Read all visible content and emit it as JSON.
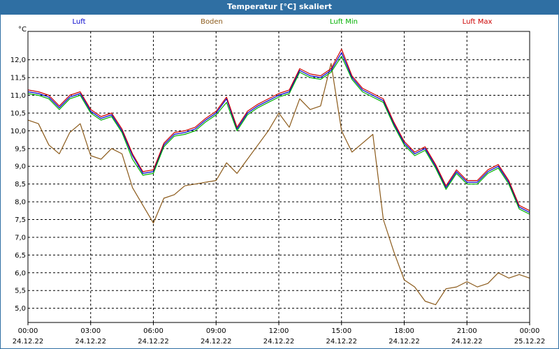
{
  "window": {
    "title": "Temperatur [°C] skaliert",
    "accent": "#2f6fa3"
  },
  "chart_data": {
    "type": "line",
    "title": "Temperatur [°C] skaliert",
    "ylabel": "°C",
    "xlabel": "",
    "ylim": [
      4.6,
      12.8
    ],
    "xlim": [
      0,
      24
    ],
    "grid": true,
    "legend_position": "top",
    "yticks": [
      5.0,
      5.5,
      6.0,
      6.5,
      7.0,
      7.5,
      8.0,
      8.5,
      9.0,
      9.5,
      10.0,
      10.5,
      11.0,
      11.5,
      12.0
    ],
    "ytick_labels": [
      "5,0",
      "5,5",
      "6,0",
      "6,5",
      "7,0",
      "7,5",
      "8,0",
      "8,5",
      "9,0",
      "9,5",
      "10,0",
      "10,5",
      "11,0",
      "11,5",
      "12,0"
    ],
    "xticks": [
      0,
      3,
      6,
      9,
      12,
      15,
      18,
      21,
      24
    ],
    "xtick_labels": [
      {
        "time": "00:00",
        "date": "24.12.22"
      },
      {
        "time": "03:00",
        "date": "24.12.22"
      },
      {
        "time": "06:00",
        "date": "24.12.22"
      },
      {
        "time": "09:00",
        "date": "24.12.22"
      },
      {
        "time": "12:00",
        "date": "24.12.22"
      },
      {
        "time": "15:00",
        "date": "24.12.22"
      },
      {
        "time": "18:00",
        "date": "24.12.22"
      },
      {
        "time": "21:00",
        "date": "24.12.22"
      },
      {
        "time": "00:00",
        "date": "25.12.22"
      }
    ],
    "x": [
      0,
      0.5,
      1,
      1.5,
      2,
      2.5,
      3,
      3.5,
      4,
      4.5,
      5,
      5.5,
      6,
      6.5,
      7,
      7.5,
      8,
      8.5,
      9,
      9.5,
      10,
      10.5,
      11,
      11.5,
      12,
      12.5,
      13,
      13.5,
      14,
      14.5,
      15,
      15.5,
      16,
      16.5,
      17,
      17.5,
      18,
      18.5,
      19,
      19.5,
      20,
      20.5,
      21,
      21.5,
      22,
      22.5,
      23,
      23.5,
      24
    ],
    "series": [
      {
        "name": "Luft",
        "color": "#0000cc",
        "values": [
          11.1,
          11.05,
          10.95,
          10.65,
          10.95,
          11.05,
          10.55,
          10.35,
          10.45,
          10.0,
          9.3,
          8.8,
          8.85,
          9.6,
          9.9,
          9.95,
          10.05,
          10.3,
          10.5,
          10.9,
          10.05,
          10.5,
          10.7,
          10.85,
          11.0,
          11.1,
          11.7,
          11.55,
          11.5,
          11.7,
          12.2,
          11.5,
          11.15,
          11.0,
          10.85,
          10.2,
          9.65,
          9.35,
          9.5,
          9.0,
          8.4,
          8.85,
          8.55,
          8.55,
          8.85,
          9.0,
          8.55,
          7.85,
          7.7
        ]
      },
      {
        "name": "Boden",
        "color": "#8b5a1a",
        "values": [
          10.3,
          10.2,
          9.6,
          9.35,
          9.95,
          10.2,
          9.3,
          9.2,
          9.5,
          9.35,
          8.4,
          7.9,
          7.4,
          8.1,
          8.2,
          8.45,
          8.5,
          8.55,
          8.6,
          9.1,
          8.8,
          9.2,
          9.6,
          10.0,
          10.5,
          10.1,
          10.9,
          10.6,
          10.7,
          11.9,
          10.0,
          9.4,
          9.65,
          9.9,
          7.5,
          6.6,
          5.8,
          5.6,
          5.2,
          5.1,
          5.55,
          5.6,
          5.75,
          5.6,
          5.7,
          6.0,
          5.85,
          5.95,
          5.85
        ]
      },
      {
        "name": "Luft Min",
        "color": "#00b000",
        "values": [
          11.05,
          11.0,
          10.9,
          10.6,
          10.9,
          11.0,
          10.5,
          10.3,
          10.4,
          9.95,
          9.2,
          8.75,
          8.8,
          9.55,
          9.85,
          9.9,
          10.0,
          10.25,
          10.45,
          10.8,
          10.0,
          10.45,
          10.65,
          10.8,
          10.95,
          11.05,
          11.65,
          11.5,
          11.45,
          11.65,
          12.1,
          11.45,
          11.1,
          10.95,
          10.8,
          10.15,
          9.6,
          9.3,
          9.45,
          8.95,
          8.35,
          8.8,
          8.5,
          8.5,
          8.8,
          8.95,
          8.5,
          7.8,
          7.65
        ]
      },
      {
        "name": "Luft Max",
        "color": "#cc0000",
        "values": [
          11.15,
          11.1,
          11.0,
          10.7,
          11.0,
          11.1,
          10.6,
          10.4,
          10.5,
          10.05,
          9.35,
          8.85,
          8.9,
          9.65,
          9.95,
          10.0,
          10.1,
          10.35,
          10.55,
          10.95,
          10.1,
          10.55,
          10.75,
          10.9,
          11.05,
          11.15,
          11.75,
          11.6,
          11.55,
          11.75,
          12.3,
          11.55,
          11.2,
          11.05,
          10.9,
          10.25,
          9.7,
          9.4,
          9.55,
          9.05,
          8.45,
          8.9,
          8.6,
          8.6,
          8.9,
          9.05,
          8.6,
          7.9,
          7.75
        ]
      }
    ]
  }
}
